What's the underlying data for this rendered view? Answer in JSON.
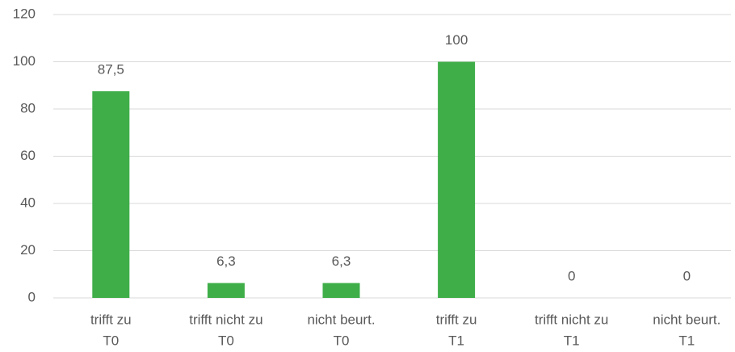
{
  "chart_data": {
    "type": "bar",
    "categories": [
      [
        "trifft zu",
        "T0"
      ],
      [
        "trifft nicht zu",
        "T0"
      ],
      [
        "nicht beurt.",
        "T0"
      ],
      [
        "trifft zu",
        "T1"
      ],
      [
        "trifft nicht zu",
        "T1"
      ],
      [
        "nicht beurt.",
        "T1"
      ]
    ],
    "values": [
      87.5,
      6.3,
      6.3,
      100,
      0,
      0
    ],
    "value_labels": [
      "87,5",
      "6,3",
      "6,3",
      "100",
      "0",
      "0"
    ],
    "color": "#3fae49",
    "ylim": [
      0,
      120
    ],
    "yticks": [
      0,
      20,
      40,
      60,
      80,
      100,
      120
    ],
    "grid": true
  }
}
